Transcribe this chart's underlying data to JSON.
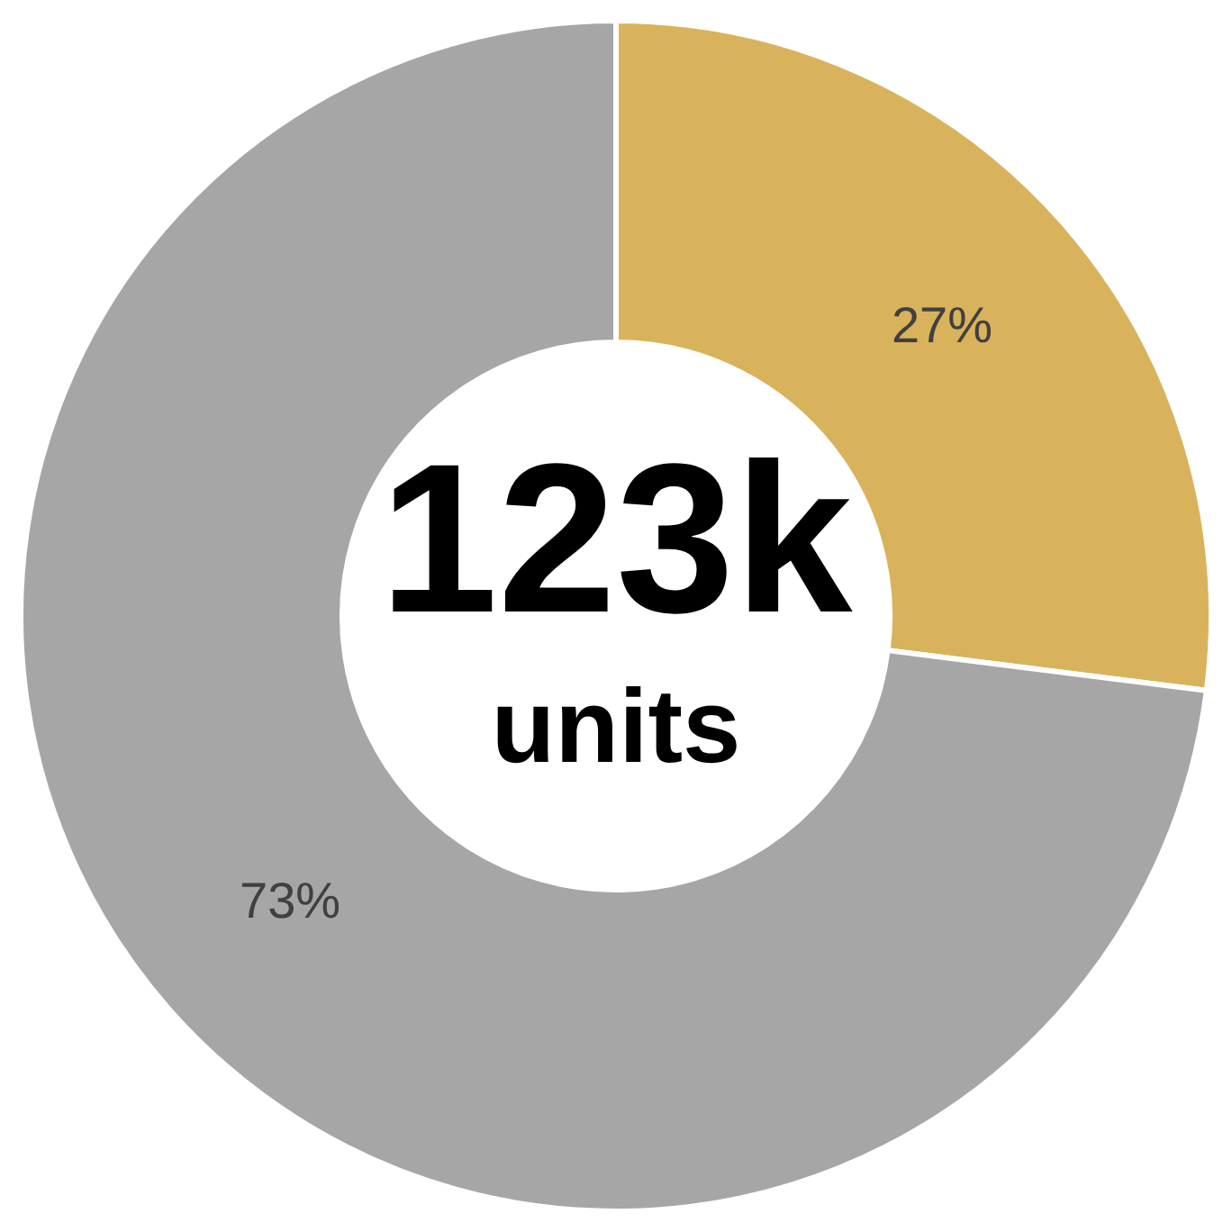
{
  "chart_data": {
    "type": "donut",
    "categories": [
      null,
      null
    ],
    "values": [
      27,
      73
    ],
    "colors": [
      "#d9b25c",
      "#a6a6a6"
    ],
    "value_labels": [
      "27%",
      "73%"
    ],
    "annotations": [
      "123k",
      "units"
    ],
    "legend": false
  }
}
